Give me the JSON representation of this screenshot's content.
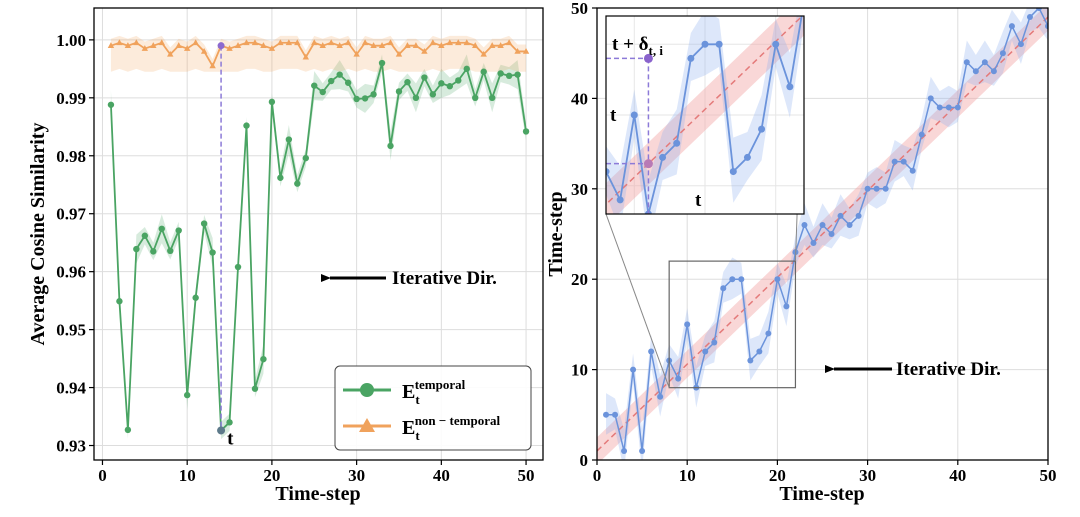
{
  "chart_data": [
    {
      "type": "line",
      "xlabel": "Time-step",
      "ylabel": "Average Cosine Similarity",
      "xlim": [
        -1,
        52
      ],
      "ylim": [
        0.9275,
        1.0055
      ],
      "xticks": [
        0,
        10,
        20,
        30,
        40,
        50
      ],
      "yticks": [
        0.93,
        0.94,
        0.95,
        0.96,
        0.97,
        0.98,
        0.99,
        1.0
      ],
      "ytick_labels": [
        "0.93",
        "0.94",
        "0.95",
        "0.96",
        "0.97",
        "0.98",
        "0.99",
        "1.00"
      ],
      "grid": true,
      "legend_position": "bottom-right",
      "series": [
        {
          "name": "E_t^temporal",
          "legend_base": "E",
          "legend_sub": "t",
          "legend_sup": "temporal",
          "color": "#4aa463",
          "marker": "circle",
          "x": [
            1,
            2,
            3,
            4,
            5,
            6,
            7,
            8,
            9,
            10,
            11,
            12,
            13,
            14,
            15,
            16,
            17,
            18,
            19,
            20,
            21,
            22,
            23,
            24,
            25,
            26,
            27,
            28,
            29,
            30,
            31,
            32,
            33,
            34,
            35,
            36,
            37,
            38,
            39,
            40,
            41,
            42,
            43,
            44,
            45,
            46,
            47,
            48,
            49,
            50
          ],
          "y": [
            0.9888,
            0.9549,
            0.9327,
            0.9639,
            0.9662,
            0.9635,
            0.9674,
            0.9636,
            0.9671,
            0.9387,
            0.9555,
            0.9683,
            0.9633,
            0.9326,
            0.934,
            0.9608,
            0.9852,
            0.9398,
            0.9449,
            0.9893,
            0.9762,
            0.9828,
            0.9752,
            0.9796,
            0.9921,
            0.991,
            0.9929,
            0.994,
            0.9926,
            0.9898,
            0.9899,
            0.9906,
            0.996,
            0.9817,
            0.9911,
            0.9927,
            0.99,
            0.9935,
            0.9906,
            0.9925,
            0.992,
            0.993,
            0.995,
            0.99,
            0.9945,
            0.99,
            0.9942,
            0.9938,
            0.994,
            0.9842
          ]
        },
        {
          "name": "E_t^non-temporal",
          "legend_base": "E",
          "legend_sub": "t",
          "legend_sup": "non − temporal",
          "color": "#f0a25c",
          "marker": "triangle",
          "x": [
            1,
            2,
            3,
            4,
            5,
            6,
            7,
            8,
            9,
            10,
            11,
            12,
            13,
            14,
            15,
            16,
            17,
            18,
            19,
            20,
            21,
            22,
            23,
            24,
            25,
            26,
            27,
            28,
            29,
            30,
            31,
            32,
            33,
            34,
            35,
            36,
            37,
            38,
            39,
            40,
            41,
            42,
            43,
            44,
            45,
            46,
            47,
            48,
            49,
            50
          ],
          "y": [
            0.999,
            0.9995,
            0.999,
            0.9995,
            0.9985,
            0.999,
            0.9995,
            0.9975,
            0.999,
            0.9985,
            0.9995,
            0.998,
            0.9955,
            0.999,
            0.9985,
            0.999,
            0.9995,
            0.9995,
            0.999,
            0.9985,
            0.9995,
            0.9995,
            0.9995,
            0.997,
            0.9995,
            0.999,
            0.9995,
            0.999,
            0.9995,
            0.9975,
            0.9995,
            0.999,
            0.999,
            0.9995,
            0.9975,
            0.999,
            0.999,
            0.998,
            0.9995,
            0.999,
            0.9995,
            0.9995,
            0.9995,
            0.999,
            0.9975,
            0.999,
            0.999,
            0.9995,
            0.998,
            0.998
          ]
        }
      ],
      "annotations": {
        "t_label": "t",
        "t_x": 14,
        "t_low": 0.9326,
        "t_high": 0.999,
        "iter_label": "Iterative Dir."
      }
    },
    {
      "type": "line",
      "xlabel": "Time-step",
      "ylabel": "Time-step",
      "xlim": [
        0,
        50
      ],
      "ylim": [
        0,
        50
      ],
      "xticks": [
        0,
        10,
        20,
        30,
        40,
        50
      ],
      "yticks": [
        0,
        10,
        20,
        30,
        40,
        50
      ],
      "grid": true,
      "series": [
        {
          "name": "",
          "color": "#6b93db",
          "marker": "circle",
          "x": [
            1,
            2,
            3,
            4,
            5,
            6,
            7,
            8,
            9,
            10,
            11,
            12,
            13,
            14,
            15,
            16,
            17,
            18,
            19,
            20,
            21,
            22,
            23,
            24,
            25,
            26,
            27,
            28,
            29,
            30,
            31,
            32,
            33,
            34,
            35,
            36,
            37,
            38,
            39,
            40,
            41,
            42,
            43,
            44,
            45,
            46,
            47,
            48,
            49,
            50
          ],
          "y": [
            5,
            5,
            1,
            10,
            1,
            12,
            7,
            11,
            9,
            15,
            8,
            12,
            13,
            19,
            20,
            20,
            11,
            12,
            14,
            20,
            17,
            23,
            26,
            24,
            26,
            25,
            27,
            26,
            27,
            30,
            30,
            30,
            33,
            33,
            32,
            36,
            40,
            39,
            39,
            39,
            44,
            43,
            44,
            43,
            45,
            48,
            46,
            49,
            50,
            48
          ]
        },
        {
          "name": "",
          "color": "#e47a7a",
          "style": "dashed",
          "x": [
            0,
            50
          ],
          "y": [
            1,
            49
          ]
        }
      ],
      "inset": {
        "xlim": [
          8,
          22
        ],
        "ylim": [
          8,
          22
        ],
        "zoom_box": {
          "x": [
            8,
            22
          ],
          "y": [
            8,
            22
          ]
        },
        "t_label": "t",
        "t_delta_label": "t + δ",
        "t_delta_sub": "t, i"
      },
      "annotations": {
        "iter_label": "Iterative Dir."
      }
    }
  ]
}
